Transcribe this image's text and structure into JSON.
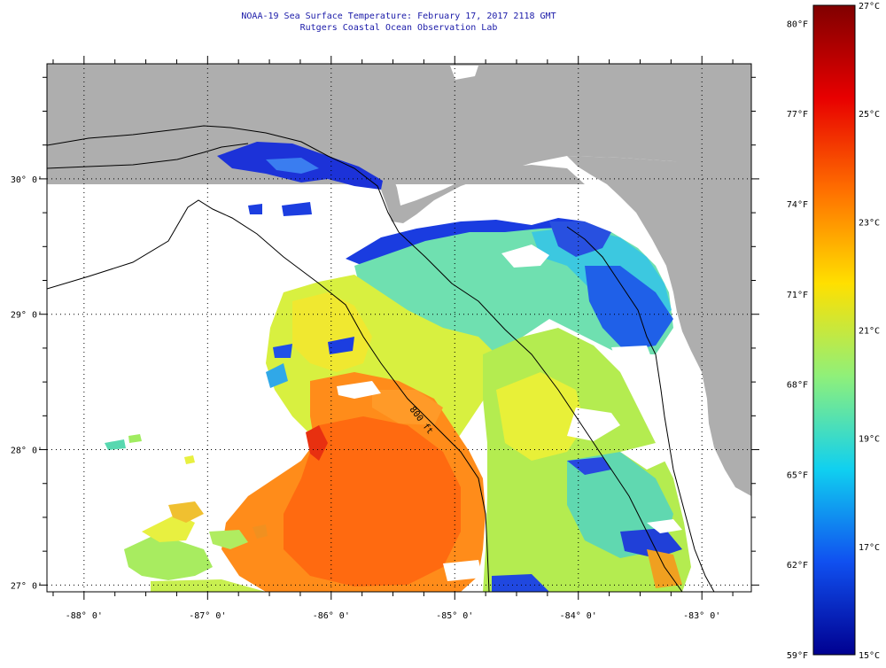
{
  "title": {
    "line1": "NOAA-19 Sea Surface Temperature:  February 17, 2017 2118 GMT",
    "line2": "Rutgers Coastal Ocean Observation Lab"
  },
  "map": {
    "lon_range": [
      -88.3,
      -82.6
    ],
    "lat_range": [
      26.95,
      30.85
    ],
    "contour_label": "800 ft",
    "lon_ticks": [
      {
        "value": -88,
        "label": "-88° 0'"
      },
      {
        "value": -87,
        "label": "-87° 0'"
      },
      {
        "value": -86,
        "label": "-86° 0'"
      },
      {
        "value": -85,
        "label": "-85° 0'"
      },
      {
        "value": -84,
        "label": "-84° 0'"
      },
      {
        "value": -83,
        "label": "-83° 0'"
      }
    ],
    "lat_ticks": [
      {
        "value": 30,
        "label": "30° 0'"
      },
      {
        "value": 29,
        "label": "29° 0'"
      },
      {
        "value": 28,
        "label": "28° 0'"
      },
      {
        "value": 27,
        "label": "27° 0'"
      }
    ],
    "colors": {
      "land": "#aeaeae",
      "cloud": "#ffffff",
      "frame": "#000000",
      "gridline": "#000000"
    }
  },
  "colorbar": {
    "celsius_range": [
      15,
      27
    ],
    "celsius_labels": [
      "27°C",
      "25°C",
      "23°C",
      "21°C",
      "19°C",
      "17°C",
      "15°C"
    ],
    "fahrenheit_labels": [
      "80°F",
      "77°F",
      "74°F",
      "71°F",
      "68°F",
      "65°F",
      "62°F",
      "59°F"
    ],
    "stops": [
      "#800000",
      "#e80000",
      "#ff7000",
      "#ffe000",
      "#8ff07a",
      "#10d0f0",
      "#1050f0",
      "#000090"
    ]
  }
}
